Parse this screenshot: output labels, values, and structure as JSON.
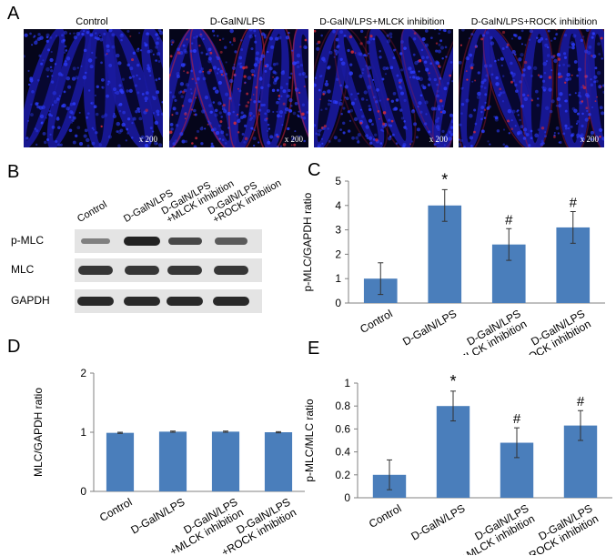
{
  "panels": {
    "a": "A",
    "b": "B",
    "c": "C",
    "d": "D",
    "e": "E"
  },
  "micrographs": [
    {
      "label": "Control",
      "mag": "x 200",
      "red": 0.04
    },
    {
      "label": "D-GalN/LPS",
      "mag": "x 200",
      "red": 0.55
    },
    {
      "label": "D-GalN/LPS+MLCK inhibition",
      "mag": "x 200",
      "red": 0.25
    },
    {
      "label": "D-GalN/LPS+ROCK inhibition",
      "mag": "x 200",
      "red": 0.35
    }
  ],
  "blot": {
    "lanes": [
      "Control",
      "D-GalN/LPS",
      "D-GalN/LPS\n+MLCK inhibition",
      "D-GalN/LPS\n+ROCK inhibition"
    ],
    "rows": [
      {
        "label": "p-MLC",
        "intensity": [
          0.25,
          1.0,
          0.7,
          0.55
        ]
      },
      {
        "label": "MLC",
        "intensity": [
          0.85,
          0.85,
          0.85,
          0.85
        ]
      },
      {
        "label": "GAPDH",
        "intensity": [
          0.95,
          0.95,
          0.95,
          0.95
        ]
      }
    ]
  },
  "chart_data": [
    {
      "panel": "C",
      "type": "bar",
      "categories": [
        "Control",
        "D-GalN/LPS",
        "D-GalN/LPS\n+MLCK inhibition",
        "D-GalN/LPS\n+ROCK inhibition"
      ],
      "values": [
        1.0,
        4.0,
        2.4,
        3.1
      ],
      "errors": [
        0.65,
        0.65,
        0.65,
        0.65
      ],
      "annotations": [
        "",
        "*",
        "#",
        "#"
      ],
      "ylabel": "p-MLC/GAPDH ratio",
      "ylim": [
        0,
        5
      ],
      "yticks": [
        0,
        1,
        2,
        3,
        4,
        5
      ],
      "color": "#4a7ebb"
    },
    {
      "panel": "D",
      "type": "bar",
      "categories": [
        "Control",
        "D-GalN/LPS",
        "D-GalN/LPS\n+MLCK inhibition",
        "D-GalN/LPS\n+ROCK inhibition"
      ],
      "values": [
        0.99,
        1.01,
        1.01,
        1.0
      ],
      "errors": [
        0.01,
        0.01,
        0.01,
        0.01
      ],
      "annotations": [
        "",
        "",
        "",
        ""
      ],
      "ylabel": "MLC/GAPDH ratio",
      "ylim": [
        0,
        2
      ],
      "yticks": [
        0,
        1,
        2
      ],
      "color": "#4a7ebb"
    },
    {
      "panel": "E",
      "type": "bar",
      "categories": [
        "Control",
        "D-GalN/LPS",
        "D-GalN/LPS\n+MLCK inhibition",
        "D-GalN/LPS\n+ROCK inhibition"
      ],
      "values": [
        0.2,
        0.8,
        0.48,
        0.63
      ],
      "errors": [
        0.13,
        0.13,
        0.13,
        0.13
      ],
      "annotations": [
        "",
        "*",
        "#",
        "#"
      ],
      "ylabel": "p-MLC/MLC ratio",
      "ylim": [
        0,
        1
      ],
      "yticks": [
        0,
        0.2,
        0.4,
        0.6,
        0.8,
        1
      ],
      "color": "#4a7ebb"
    }
  ]
}
